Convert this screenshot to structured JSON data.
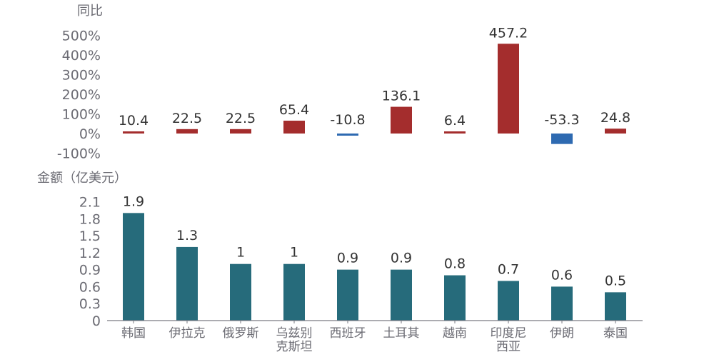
{
  "chart_data": [
    {
      "type": "bar",
      "title": "同比",
      "categories": [
        "韩国",
        "伊拉克",
        "俄罗斯",
        "乌兹别克斯坦",
        "西班牙",
        "土耳其",
        "越南",
        "印度尼西亚",
        "伊朗",
        "泰国"
      ],
      "values": [
        10.4,
        22.5,
        22.5,
        65.4,
        -10.8,
        136.1,
        6.4,
        457.2,
        -53.3,
        24.8
      ],
      "data_labels": [
        "10.4",
        "22.5",
        "22.5",
        "65.4",
        "-10.8",
        "136.1",
        "6.4",
        "457.2",
        "-53.3",
        "24.8"
      ],
      "ylim": [
        -100,
        500
      ],
      "yticks": [
        -100,
        0,
        100,
        200,
        300,
        400,
        500
      ],
      "ytick_labels": [
        "-100%",
        "0%",
        "100%",
        "200%",
        "300%",
        "400%",
        "500%"
      ],
      "colors": {
        "positive": "#A42D2D",
        "negative": "#2E6AB1"
      },
      "grid": false
    },
    {
      "type": "bar",
      "title": "金额（亿美元）",
      "categories": [
        "韩国",
        "伊拉克",
        "俄罗斯",
        "乌兹别克斯坦",
        "西班牙",
        "土耳其",
        "越南",
        "印度尼西亚",
        "伊朗",
        "泰国"
      ],
      "category_labels": [
        [
          "韩国"
        ],
        [
          "伊拉克"
        ],
        [
          "俄罗斯"
        ],
        [
          "乌兹别",
          "克斯坦"
        ],
        [
          "西班牙"
        ],
        [
          "土耳其"
        ],
        [
          "越南"
        ],
        [
          "印度尼",
          "西亚"
        ],
        [
          "伊朗"
        ],
        [
          "泰国"
        ]
      ],
      "values": [
        1.9,
        1.3,
        1,
        1,
        0.9,
        0.9,
        0.8,
        0.7,
        0.6,
        0.5
      ],
      "data_labels": [
        "1.9",
        "1.3",
        "1",
        "1",
        "0.9",
        "0.9",
        "0.8",
        "0.7",
        "0.6",
        "0.5"
      ],
      "ylim": [
        0,
        2.1
      ],
      "yticks": [
        0,
        0.3,
        0.6,
        0.9,
        1.2,
        1.5,
        1.8,
        2.1
      ],
      "ytick_labels": [
        "0",
        "0.3",
        "0.6",
        "0.9",
        "1.2",
        "1.5",
        "1.8",
        "2.1"
      ],
      "colors": {
        "bar": "#266B7B"
      },
      "grid": false
    }
  ]
}
